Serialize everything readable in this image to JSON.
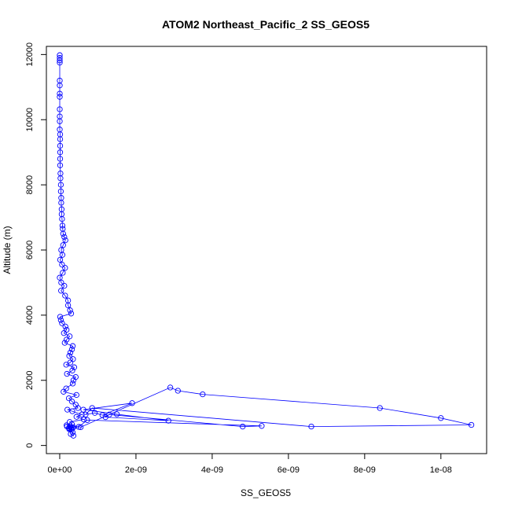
{
  "chart_data": {
    "type": "scatter",
    "title": "ATOM2 Northeast_Pacific_2 SS_GEOS5",
    "xlabel": "SS_GEOS5",
    "ylabel": "Altitude (m)",
    "xlim": [
      -3.5e-10,
      1.12e-08
    ],
    "ylim": [
      -250,
      12250
    ],
    "x_ticks": [
      0,
      2e-09,
      4e-09,
      6e-09,
      8e-09,
      1e-08
    ],
    "x_tick_labels": [
      "0e+00",
      "2e-09",
      "4e-09",
      "6e-09",
      "8e-09",
      "1e-08"
    ],
    "y_ticks": [
      0,
      2000,
      4000,
      6000,
      8000,
      10000,
      12000
    ],
    "y_tick_labels": [
      "0",
      "2000",
      "4000",
      "6000",
      "8000",
      "10000",
      "12000"
    ],
    "grid": false,
    "legend": "none",
    "marker": "open-circle",
    "connected": true,
    "color": "#0000ff",
    "series": [
      {
        "x": [
          0,
          0,
          0,
          0,
          0,
          0,
          0,
          0,
          0,
          0,
          0,
          0,
          1e-11,
          1e-11,
          1e-11,
          1e-11,
          1e-11,
          1e-11,
          2e-11,
          2e-11,
          3e-11,
          3e-11,
          4e-11,
          4e-11,
          5e-11,
          5e-11,
          6e-11,
          7e-11,
          8e-11,
          9e-11,
          1.2e-10,
          1.5e-10,
          9e-11,
          4e-11,
          7e-11,
          1e-11,
          6e-11,
          1.4e-10,
          8e-11,
          0,
          4e-11,
          1.2e-10,
          3.5e-11,
          1.4e-10,
          2.2e-10,
          2.2e-10,
          2.7e-10,
          3e-10,
          1e-11,
          3e-11,
          6e-11,
          1.5e-10,
          1.8e-10,
          1.1e-10,
          2.6e-10,
          1.8e-10,
          1.3e-10,
          3.4e-10,
          3.2e-10,
          2.8e-10,
          2.5e-10,
          3.5e-10,
          2.8e-10,
          1.7e-10,
          3.8e-10,
          3.3e-10,
          1.9e-10,
          4.2e-10,
          3.6e-10,
          3.4e-10,
          1.7e-10,
          1e-10,
          4.4e-10,
          2.4e-10,
          3.2e-10,
          4.2e-10,
          4.8e-10,
          2e-10,
          3.3e-10,
          5.8e-10,
          4.4e-10,
          6.3e-10,
          2.6e-10,
          3.2e-10,
          1.8e-10,
          5.5e-10,
          2.9e-09,
          3.1e-09,
          3.75e-09,
          8.4e-09,
          1e-08,
          1.08e-08,
          6.6e-09,
          8.5e-10,
          6.8e-10,
          9.2e-10,
          1.12e-09,
          1.9e-09,
          6.2e-10,
          1.5e-09,
          2.85e-09,
          1.2e-09,
          1.3e-09,
          4.8e-09,
          5.3e-09,
          7.2e-10,
          5e-10,
          3.6e-10,
          3.3e-10,
          2.5e-10,
          3e-10,
          2.8e-10,
          1.9e-10,
          2.4e-10,
          2.6e-10,
          3.1e-10,
          3.4e-10,
          3.6e-10,
          2.9e-10
        ],
        "y": [
          11980,
          11900,
          11820,
          11750,
          11200,
          11050,
          10800,
          10700,
          10320,
          10100,
          9950,
          9700,
          9550,
          9400,
          9200,
          9000,
          8800,
          8600,
          8350,
          8200,
          8000,
          7800,
          7600,
          7450,
          7250,
          7100,
          6950,
          6750,
          6650,
          6500,
          6400,
          6300,
          6150,
          6000,
          5850,
          5700,
          5550,
          5450,
          5300,
          5150,
          5000,
          4900,
          4750,
          4600,
          4450,
          4300,
          4150,
          4050,
          3950,
          3850,
          3750,
          3650,
          3550,
          3450,
          3350,
          3250,
          3150,
          3050,
          2950,
          2850,
          2750,
          2650,
          2550,
          2480,
          2400,
          2300,
          2200,
          2100,
          2000,
          1900,
          1750,
          1650,
          1550,
          1450,
          1350,
          1250,
          1150,
          1100,
          1050,
          950,
          880,
          800,
          720,
          650,
          620,
          560,
          1780,
          1680,
          1570,
          1150,
          840,
          630,
          580,
          1150,
          950,
          1000,
          930,
          1300,
          1100,
          960,
          760,
          870,
          950,
          580,
          600,
          780,
          570,
          560,
          540,
          500,
          530,
          560,
          580,
          540,
          520,
          480,
          400,
          300,
          350
        ]
      }
    ]
  }
}
